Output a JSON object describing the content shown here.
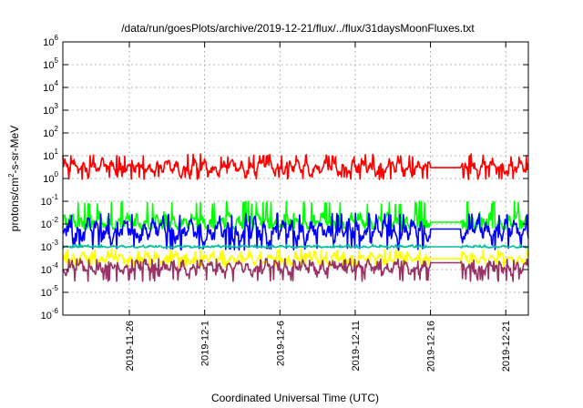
{
  "chart_data": {
    "type": "line",
    "title": "/data/run/goesPlots/archive/2019-12-21/flux/../flux/31daysMoonFluxes.txt",
    "xlabel": "Coordinated Universal Time (UTC)",
    "ylabel": {
      "prefix": "protons/cm",
      "sup": "2",
      "suffix": "-s-sr-MeV"
    },
    "y_scale": "log",
    "ylim_exponents": [
      -6,
      6
    ],
    "y_tick_labels": [
      {
        "base": "10",
        "exp": "6"
      },
      {
        "base": "10",
        "exp": "5"
      },
      {
        "base": "10",
        "exp": "4"
      },
      {
        "base": "10",
        "exp": "3"
      },
      {
        "base": "10",
        "exp": "2"
      },
      {
        "base": "10",
        "exp": "1"
      },
      {
        "base": "10",
        "exp": "0"
      },
      {
        "base": "10",
        "exp": "-1"
      },
      {
        "base": "10",
        "exp": "-2"
      },
      {
        "base": "10",
        "exp": "-3"
      },
      {
        "base": "10",
        "exp": "-4"
      },
      {
        "base": "10",
        "exp": "-5"
      },
      {
        "base": "10",
        "exp": "-6"
      }
    ],
    "xlim": [
      "2019-11-21T14:00",
      "2019-12-22T12:00"
    ],
    "x_tick_labels": [
      "2019-11-26",
      "2019-12-1",
      "2019-12-6",
      "2019-12-11",
      "2019-12-16",
      "2019-12-21"
    ],
    "x_tick_dates": [
      "2019-11-26",
      "2019-12-01",
      "2019-12-06",
      "2019-12-11",
      "2019-12-16",
      "2019-12-21"
    ],
    "grid": true,
    "data_gap": [
      "2019-12-16T00:00",
      "2019-12-18T00:00"
    ],
    "series": [
      {
        "color": "#ff0000",
        "typical": 3,
        "low": 0.9,
        "high": 12,
        "gap_value": 3
      },
      {
        "color": "#00ff00",
        "typical": 0.012,
        "low": 0.006,
        "high": 0.1,
        "gap_value": 0.012
      },
      {
        "color": "#0000ff",
        "typical": 0.005,
        "low": 0.0007,
        "high": 0.03,
        "gap_value": 0.006
      },
      {
        "color": "#00c0a0",
        "typical": 0.001,
        "low": 0.0009,
        "high": 0.0013,
        "gap_value": 0.001
      },
      {
        "color": "#ffff00",
        "typical": 0.0003,
        "low": 0.00012,
        "high": 0.0008,
        "gap_value": 0.0003
      },
      {
        "color": "#993366",
        "typical": 0.00012,
        "low": 3e-05,
        "high": 0.0003,
        "gap_value": 0.0002
      }
    ]
  }
}
